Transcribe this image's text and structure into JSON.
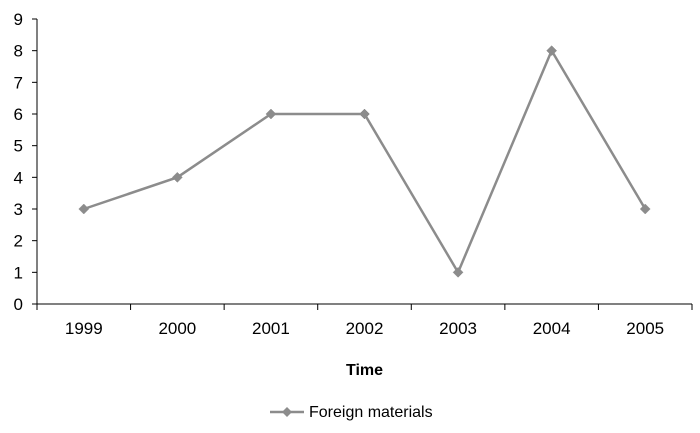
{
  "chart_data": {
    "type": "line",
    "title": "",
    "xlabel": "Time",
    "ylabel": "",
    "categories": [
      "1999",
      "2000",
      "2001",
      "2002",
      "2003",
      "2004",
      "2005"
    ],
    "yticks": [
      "0",
      "1",
      "2",
      "3",
      "4",
      "5",
      "6",
      "7",
      "8",
      "9"
    ],
    "ylim": [
      0,
      9
    ],
    "grid": false,
    "legend_position": "bottom",
    "series": [
      {
        "name": "Foreign materials",
        "values": [
          3,
          4,
          6,
          6,
          1,
          8,
          3
        ],
        "color": "#8c8c8c",
        "marker": "diamond"
      }
    ]
  }
}
